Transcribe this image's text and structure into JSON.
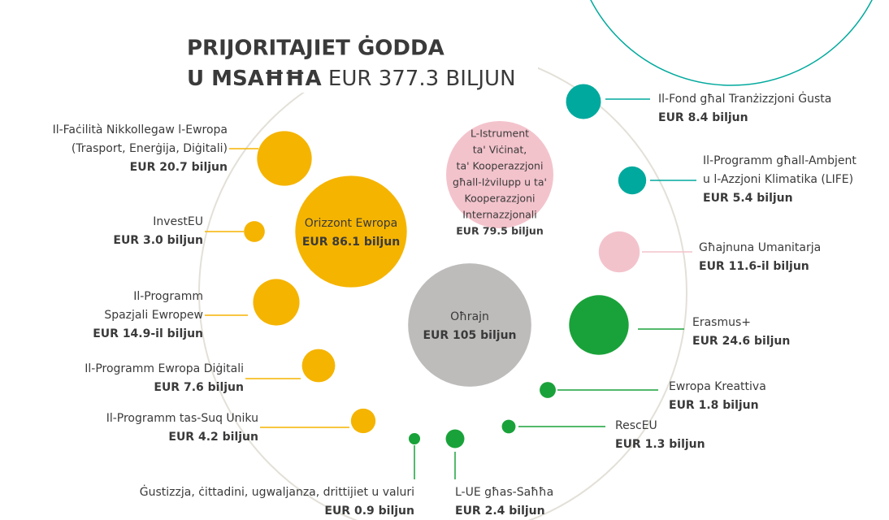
{
  "chart_data": {
    "type": "bubble",
    "title": [
      "PRIJORITAJIET ĠODDA",
      "U MSAĦĦA"
    ],
    "subtitle": "EUR 377.3 BILJUN",
    "categories": [
      [
        "Il-Faċilità Nikkollegaw l-Ewropa",
        "(Trasport, Enerġija, Diġitali)"
      ],
      [
        "InvestEU"
      ],
      [
        "Il-Programm",
        "Spazjali Ewropew"
      ],
      [
        "Il-Programm Ewropa Diġitali"
      ],
      [
        "Il-Programm tas-Suq Uniku"
      ],
      [
        "Ġustizzja, ċittadini, ugwaljanza, drittijiet u valuri"
      ],
      [
        "L-UE għas-Saħħa"
      ],
      [
        "Orizzont Ewropa"
      ],
      [
        "L-Istrument",
        "ta' Viċinat,",
        "ta' Kooperazzjoni",
        "għall-Iżvilupp u ta'",
        "Kooperazzjoni",
        "Internazzjonali"
      ],
      [
        "Oħrajn"
      ],
      [
        "Il-Fond għal Tranżizzjoni Ġusta"
      ],
      [
        "Il-Programm għall-Ambjent",
        "u l-Azzjoni Klimatika (LIFE)"
      ],
      [
        "Għajnuna Umanitarja"
      ],
      [
        "Erasmus+"
      ],
      [
        "Ewropa Kreattiva"
      ],
      [
        "RescEU"
      ]
    ],
    "values": [
      20.7,
      3.0,
      14.9,
      7.6,
      4.2,
      0.9,
      2.4,
      86.1,
      79.5,
      105,
      8.4,
      5.4,
      11.6,
      24.6,
      1.8,
      1.3
    ],
    "value_labels": [
      "EUR 20.7 biljun",
      "EUR 3.0 biljun",
      "EUR 14.9-il biljun",
      "EUR 7.6 biljun",
      "EUR 4.2 biljun",
      "EUR 0.9 biljun",
      "EUR 2.4 biljun",
      "EUR 86.1 biljun",
      "EUR 79.5 biljun",
      "EUR 105 biljun",
      "EUR 8.4 biljun",
      "EUR 5.4 biljun",
      "EUR 11.6-il biljun",
      "EUR 24.6 biljun",
      "EUR 1.8 biljun",
      "EUR 1.3 biljun"
    ],
    "colors": [
      "#f5b400",
      "#f5b400",
      "#f5b400",
      "#f5b400",
      "#f5b400",
      "#1aa23a",
      "#1aa23a",
      "#f5b400",
      "#f3c3cc",
      "#bdbcbb",
      "#00a99d",
      "#00a99d",
      "#f3c3cc",
      "#1aa23a",
      "#1aa23a",
      "#1aa23a"
    ]
  }
}
